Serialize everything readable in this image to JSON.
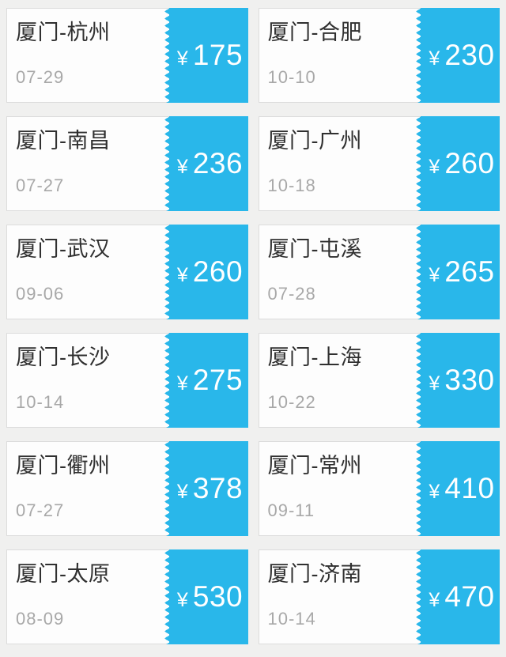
{
  "colors": {
    "page_background": "#f0f0ef",
    "card_background": "#fdfdfd",
    "card_border": "#dcdcdc",
    "accent_blue": "#29b7ea",
    "route_text": "#303030",
    "date_text": "#a8a8a8",
    "price_text": "#ffffff"
  },
  "tickets": [
    {
      "route": "厦门-杭州",
      "date": "07-29",
      "currency": "¥",
      "price": "175"
    },
    {
      "route": "厦门-合肥",
      "date": "10-10",
      "currency": "¥",
      "price": "230"
    },
    {
      "route": "厦门-南昌",
      "date": "07-27",
      "currency": "¥",
      "price": "236"
    },
    {
      "route": "厦门-广州",
      "date": "10-18",
      "currency": "¥",
      "price": "260"
    },
    {
      "route": "厦门-武汉",
      "date": "09-06",
      "currency": "¥",
      "price": "260"
    },
    {
      "route": "厦门-屯溪",
      "date": "07-28",
      "currency": "¥",
      "price": "265"
    },
    {
      "route": "厦门-长沙",
      "date": "10-14",
      "currency": "¥",
      "price": "275"
    },
    {
      "route": "厦门-上海",
      "date": "10-22",
      "currency": "¥",
      "price": "330"
    },
    {
      "route": "厦门-衢州",
      "date": "07-27",
      "currency": "¥",
      "price": "378"
    },
    {
      "route": "厦门-常州",
      "date": "09-11",
      "currency": "¥",
      "price": "410"
    },
    {
      "route": "厦门-太原",
      "date": "08-09",
      "currency": "¥",
      "price": "530"
    },
    {
      "route": "厦门-济南",
      "date": "10-14",
      "currency": "¥",
      "price": "470"
    }
  ]
}
